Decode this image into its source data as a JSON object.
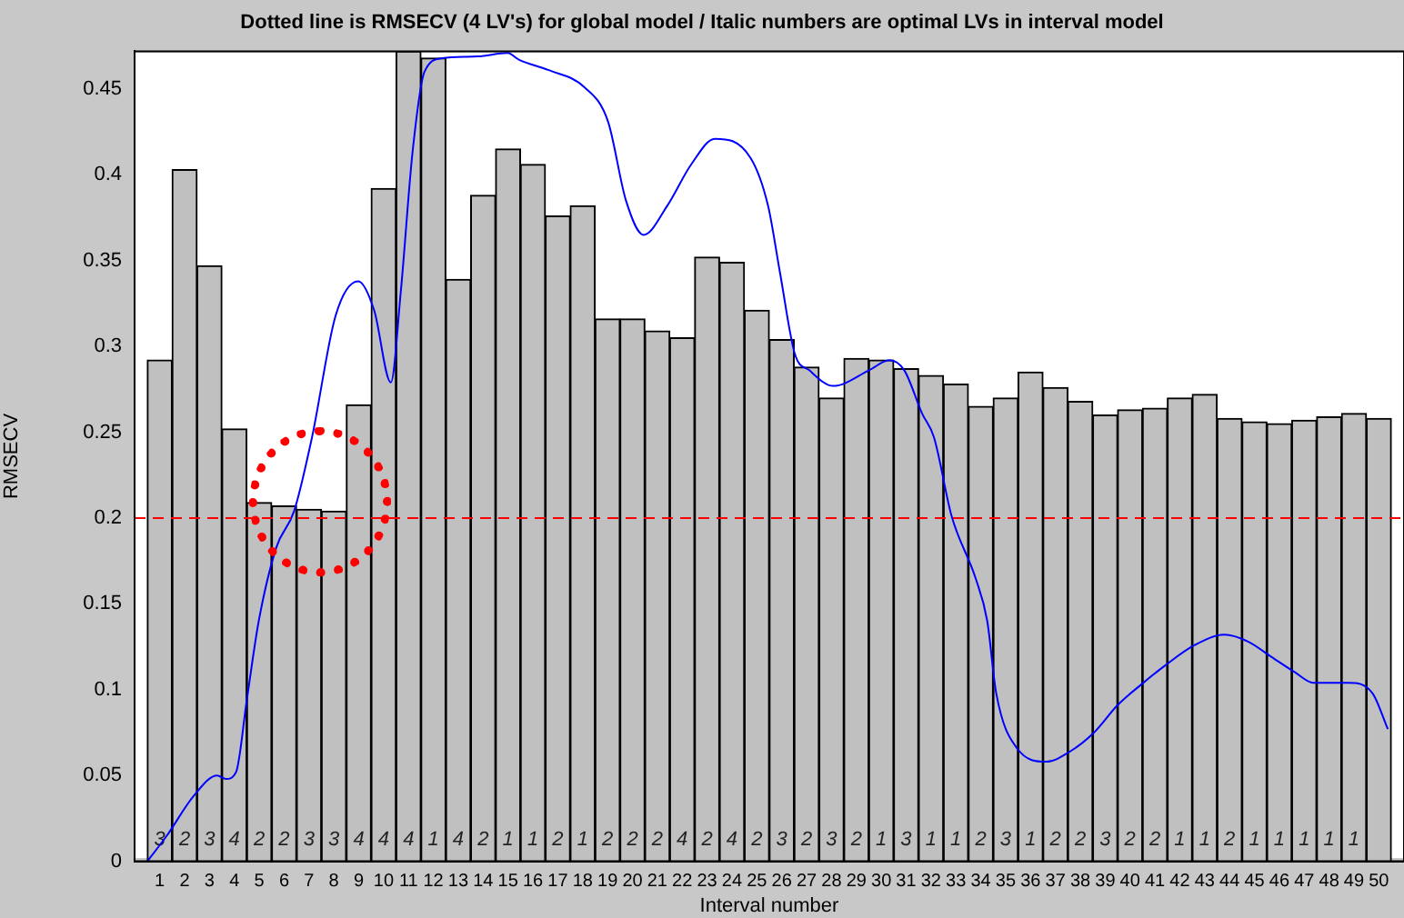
{
  "chart_data": {
    "type": "bar",
    "title": "Dotted line is RMSECV (4 LV's) for global model / Italic numbers are optimal LVs in interval model",
    "xlabel": "Interval number",
    "ylabel": "RMSECV",
    "x": [
      1,
      2,
      3,
      4,
      5,
      6,
      7,
      8,
      9,
      10,
      11,
      12,
      13,
      14,
      15,
      16,
      17,
      18,
      19,
      20,
      21,
      22,
      23,
      24,
      25,
      26,
      27,
      28,
      29,
      30,
      31,
      32,
      33,
      34,
      35,
      36,
      37,
      38,
      39,
      40,
      41,
      42,
      43,
      44,
      45,
      46,
      47,
      48,
      49,
      50
    ],
    "xlim": [
      0.5,
      50.5
    ],
    "xticks": [
      1,
      2,
      3,
      4,
      5,
      6,
      7,
      8,
      9,
      10,
      11,
      12,
      13,
      14,
      15,
      16,
      17,
      18,
      19,
      20,
      21,
      22,
      23,
      24,
      25,
      26,
      27,
      28,
      29,
      30,
      31,
      32,
      33,
      34,
      35,
      36,
      37,
      38,
      39,
      40,
      41,
      42,
      43,
      44,
      45,
      46,
      47,
      48,
      49,
      50
    ],
    "ylim": [
      0,
      0.472
    ],
    "yticks": [
      0,
      0.05,
      0.1,
      0.15,
      0.2,
      0.25,
      0.3,
      0.35,
      0.4,
      0.45
    ],
    "series": [
      {
        "color": "#c0c0c0",
        "values": [
          0.292,
          0.403,
          0.347,
          0.252,
          0.209,
          0.207,
          0.205,
          0.204,
          0.266,
          0.392,
          0.472,
          0.468,
          0.339,
          0.388,
          0.415,
          0.406,
          0.376,
          0.382,
          0.316,
          0.316,
          0.309,
          0.305,
          0.352,
          0.349,
          0.321,
          0.304,
          0.288,
          0.27,
          0.293,
          0.292,
          0.287,
          0.283,
          0.278,
          0.265,
          0.27,
          0.285,
          0.276,
          0.268,
          0.26,
          0.263,
          0.264,
          0.27,
          0.272,
          0.258,
          0.256,
          0.255,
          0.257,
          0.259,
          0.261,
          0.258
        ]
      },
      {
        "type": "line",
        "color": "#0000ff",
        "x": [
          0.5,
          1.29,
          2.36,
          3.31,
          3.66,
          4.07,
          4.5,
          4.98,
          5.69,
          6.4,
          7.12,
          8.07,
          8.98,
          9.62,
          10.29,
          10.69,
          11.16,
          11.64,
          12.36,
          13.79,
          14.98,
          15.45,
          16.64,
          18.07,
          19.02,
          19.74,
          20.45,
          21.4,
          22.36,
          23.31,
          24.74,
          25.45,
          25.93,
          26.52,
          27.12,
          28.07,
          29.5,
          30.33,
          30.93,
          31.64,
          32.12,
          32.83,
          33.79,
          34.26,
          34.62,
          35.45,
          36.64,
          37.59,
          38.55,
          39.5,
          40.45,
          41.4,
          42.6,
          43.79,
          44.74,
          45.69,
          46.64,
          47.36,
          48.79,
          49.74,
          50.36
        ],
        "values": [
          0,
          0.015,
          0.038,
          0.05,
          0.048,
          0.052,
          0.094,
          0.14,
          0.183,
          0.204,
          0.247,
          0.318,
          0.338,
          0.321,
          0.279,
          0.332,
          0.413,
          0.46,
          0.468,
          0.469,
          0.471,
          0.467,
          0.461,
          0.451,
          0.431,
          0.385,
          0.365,
          0.382,
          0.406,
          0.421,
          0.41,
          0.382,
          0.343,
          0.296,
          0.286,
          0.277,
          0.286,
          0.292,
          0.286,
          0.261,
          0.247,
          0.201,
          0.165,
          0.14,
          0.098,
          0.066,
          0.058,
          0.064,
          0.075,
          0.091,
          0.103,
          0.114,
          0.126,
          0.132,
          0.128,
          0.119,
          0.11,
          0.104,
          0.104,
          0.098,
          0.077
        ]
      }
    ],
    "annotations": [
      "3",
      "2",
      "3",
      "4",
      "2",
      "2",
      "3",
      "3",
      "4",
      "4",
      "4",
      "1",
      "4",
      "2",
      "1",
      "1",
      "2",
      "1",
      "2",
      "2",
      "2",
      "4",
      "2",
      "4",
      "2",
      "3",
      "2",
      "3",
      "2",
      "1",
      "3",
      "1",
      "1",
      "2",
      "3",
      "1",
      "2",
      "2",
      "3",
      "2",
      "2",
      "1",
      "1",
      "2",
      "1",
      "1",
      "1",
      "1",
      "1"
    ],
    "ref_lines": [
      {
        "axis": "y",
        "value": 0.2,
        "color": "#ff0000",
        "line_style": "dashed"
      }
    ]
  }
}
